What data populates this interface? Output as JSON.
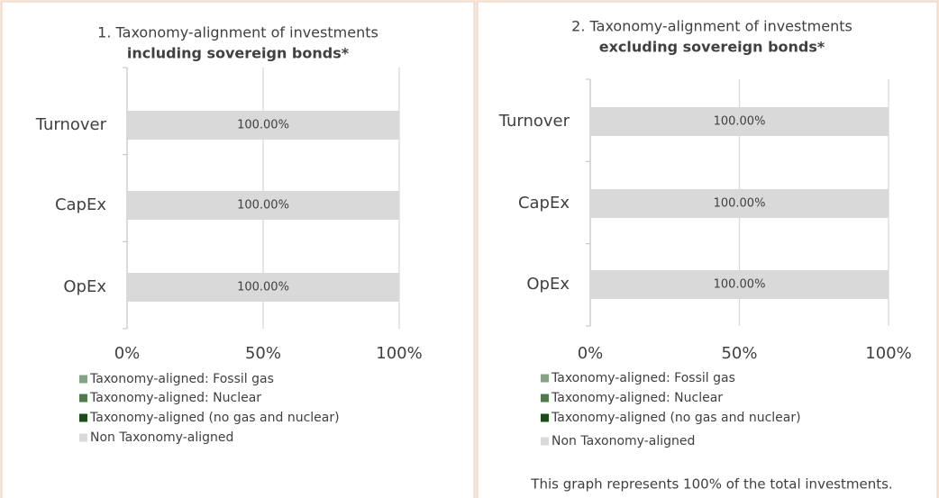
{
  "chart_data": [
    {
      "type": "bar",
      "orientation": "horizontal",
      "stacked": true,
      "title": "1. Taxonomy-alignment of investments",
      "subtitle": "including sovereign bonds*",
      "categories": [
        "Turnover",
        "CapEx",
        "OpEx"
      ],
      "series": [
        {
          "name": "Taxonomy-aligned: Fossil gas",
          "color": "#86a386",
          "values": [
            0,
            0,
            0
          ]
        },
        {
          "name": "Taxonomy-aligned: Nuclear",
          "color": "#4e7a4e",
          "values": [
            0,
            0,
            0
          ]
        },
        {
          "name": "Taxonomy-aligned (no gas and nuclear)",
          "color": "#1b4a1b",
          "values": [
            0,
            0,
            0
          ]
        },
        {
          "name": "Non Taxonomy-aligned",
          "color": "#d9d9d9",
          "values": [
            100,
            100,
            100
          ],
          "value_labels": [
            "100.00%",
            "100.00%",
            "100.00%"
          ]
        }
      ],
      "xlim": [
        0,
        100
      ],
      "xticks": [
        {
          "value": 0,
          "label": "0%"
        },
        {
          "value": 50,
          "label": "50%"
        },
        {
          "value": 100,
          "label": "100%"
        }
      ],
      "grid": true,
      "legend": "bottom"
    },
    {
      "type": "bar",
      "orientation": "horizontal",
      "stacked": true,
      "title": "2. Taxonomy-alignment of investments",
      "subtitle": "excluding sovereign bonds*",
      "categories": [
        "Turnover",
        "CapEx",
        "OpEx"
      ],
      "series": [
        {
          "name": "Taxonomy-aligned: Fossil gas",
          "color": "#86a386",
          "values": [
            0,
            0,
            0
          ]
        },
        {
          "name": "Taxonomy-aligned: Nuclear",
          "color": "#4e7a4e",
          "values": [
            0,
            0,
            0
          ]
        },
        {
          "name": "Taxonomy-aligned (no gas and nuclear)",
          "color": "#1b4a1b",
          "values": [
            0,
            0,
            0
          ]
        },
        {
          "name": "Non Taxonomy-aligned",
          "color": "#d9d9d9",
          "values": [
            100,
            100,
            100
          ],
          "value_labels": [
            "100.00%",
            "100.00%",
            "100.00%"
          ]
        }
      ],
      "xlim": [
        0,
        100
      ],
      "xticks": [
        {
          "value": 0,
          "label": "0%"
        },
        {
          "value": 50,
          "label": "50%"
        },
        {
          "value": 100,
          "label": "100%"
        }
      ],
      "grid": true,
      "legend": "bottom",
      "note": "This graph represents 100% of the total investments."
    }
  ]
}
